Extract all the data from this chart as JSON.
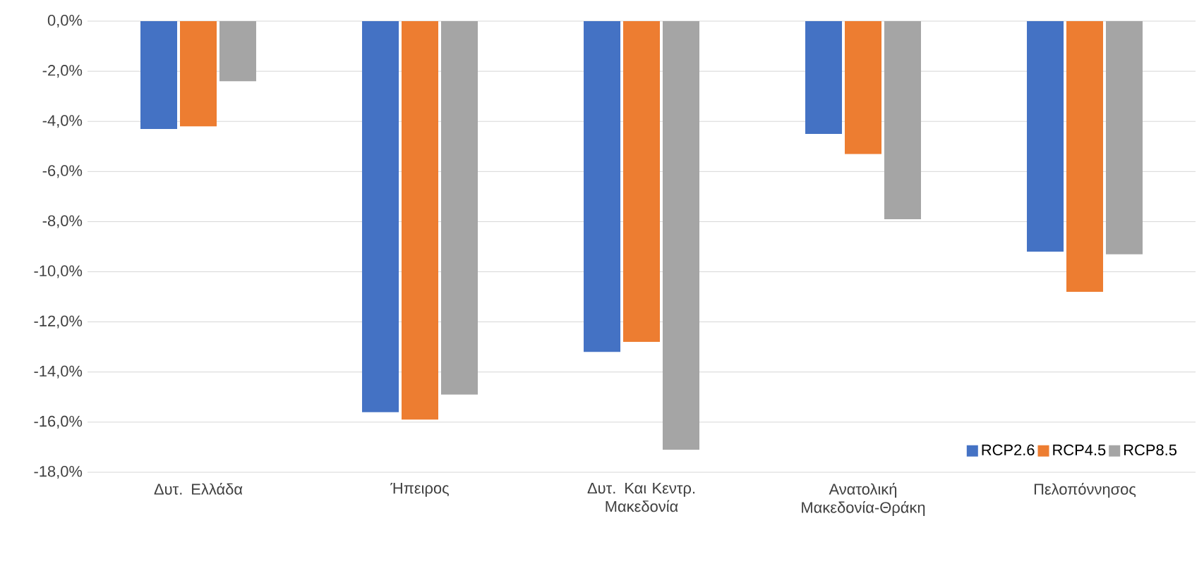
{
  "chart_data": {
    "type": "bar",
    "categories": [
      "Δυτ. Ελλάδα",
      "Ήπειρος",
      "Δυτ. Και Κεντρ. Μακεδονία",
      "Ανατολική Μακεδονία-Θράκη",
      "Πελοπόννησος"
    ],
    "series": [
      {
        "name": "RCP2.6",
        "color": "#4472c4",
        "values": [
          -4.3,
          -15.6,
          -13.2,
          -4.5,
          -9.2
        ]
      },
      {
        "name": "RCP4.5",
        "color": "#ed7d31",
        "values": [
          -4.2,
          -15.9,
          -12.8,
          -5.3,
          -10.8
        ]
      },
      {
        "name": "RCP8.5",
        "color": "#a5a5a5",
        "values": [
          -2.4,
          -14.9,
          -17.1,
          -7.9,
          -9.3
        ]
      }
    ],
    "ylim": [
      -18,
      0
    ],
    "yticks": [
      {
        "value": 0,
        "label": "0,0%"
      },
      {
        "value": -2,
        "label": "-2,0%"
      },
      {
        "value": -4,
        "label": "-4,0%"
      },
      {
        "value": -6,
        "label": "-6,0%"
      },
      {
        "value": -8,
        "label": "-8,0%"
      },
      {
        "value": -10,
        "label": "-10,0%"
      },
      {
        "value": -12,
        "label": "-12,0%"
      },
      {
        "value": -14,
        "label": "-14,0%"
      },
      {
        "value": -16,
        "label": "-16,0%"
      },
      {
        "value": -18,
        "label": "-18,0%"
      }
    ],
    "grid": "y",
    "legend": "bottom right"
  }
}
